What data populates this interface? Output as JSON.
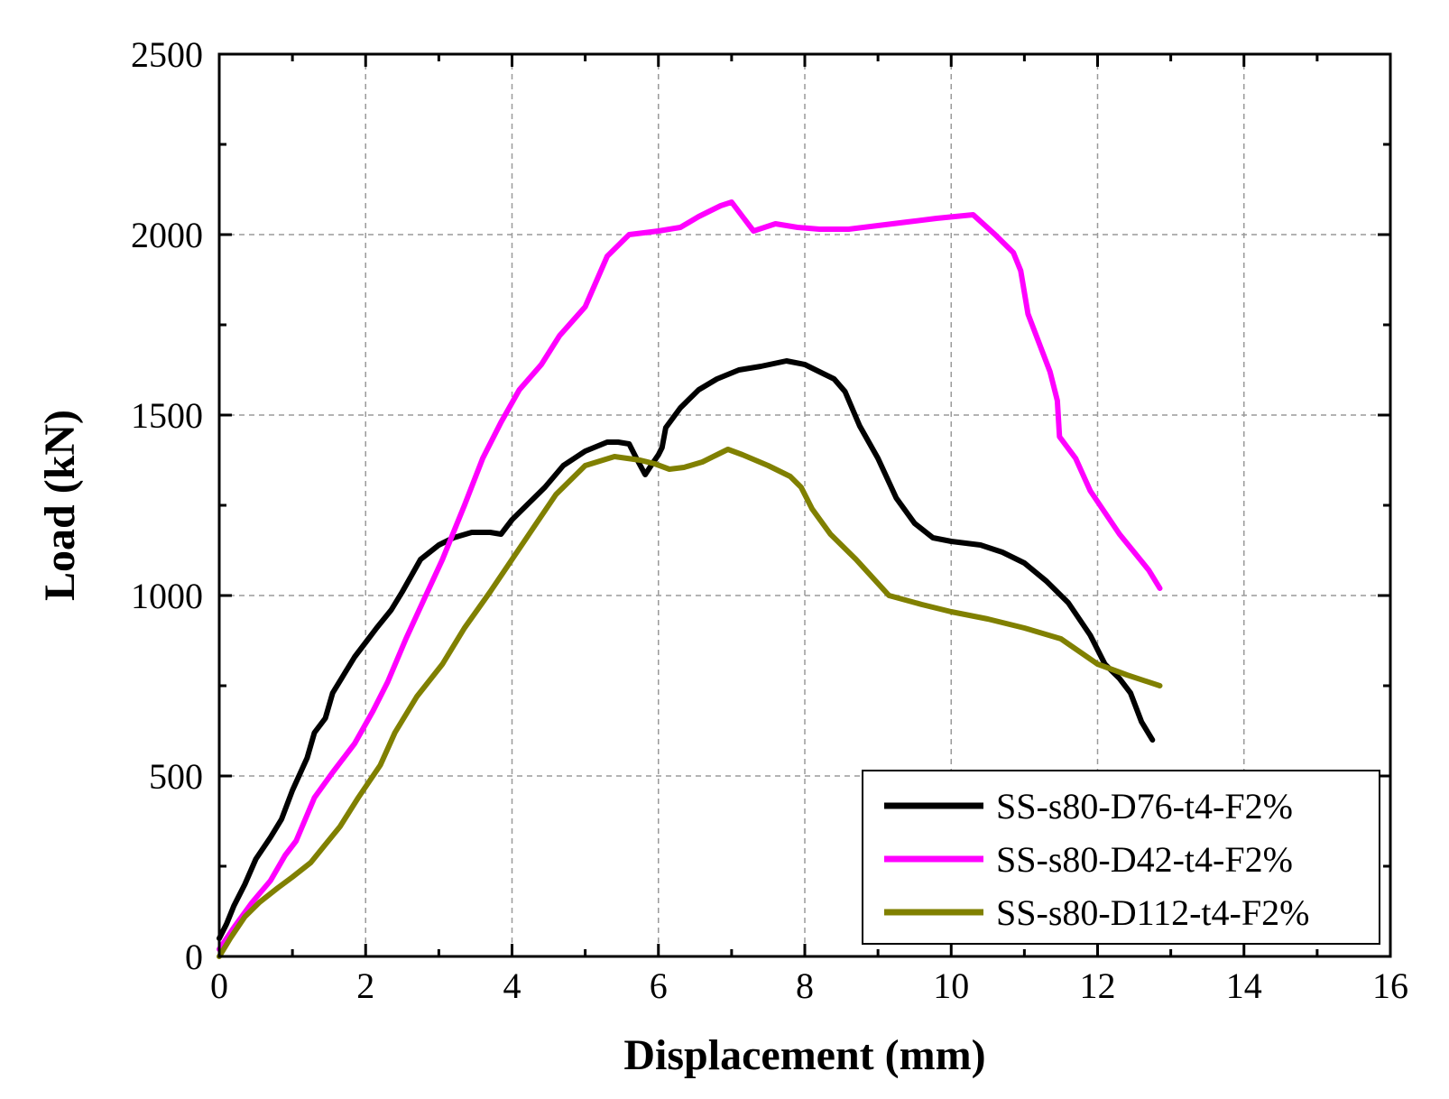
{
  "chart_data": {
    "type": "line",
    "title": "",
    "xlabel": "Displacement (mm)",
    "ylabel": "Load (kN)",
    "xlim": [
      0,
      16
    ],
    "ylim": [
      0,
      2500
    ],
    "xticks": [
      0,
      2,
      4,
      6,
      8,
      10,
      12,
      14,
      16
    ],
    "yticks": [
      0,
      500,
      1000,
      1500,
      2000,
      2500
    ],
    "grid": true,
    "legend_position": "bottom-right",
    "series": [
      {
        "name": "SS-s80-D76-t4-F2%",
        "color": "#000000",
        "x": [
          0,
          0.1,
          0.2,
          0.35,
          0.5,
          0.7,
          0.85,
          1.0,
          1.2,
          1.3,
          1.45,
          1.55,
          1.7,
          1.85,
          2.0,
          2.15,
          2.35,
          2.5,
          2.75,
          3.0,
          3.2,
          3.45,
          3.7,
          3.85,
          4.0,
          4.2,
          4.45,
          4.7,
          5.0,
          5.3,
          5.45,
          5.6,
          5.7,
          5.82,
          5.9,
          6.0,
          6.05,
          6.1,
          6.3,
          6.55,
          6.8,
          7.1,
          7.4,
          7.75,
          8.0,
          8.2,
          8.4,
          8.55,
          8.75,
          9.0,
          9.25,
          9.5,
          9.75,
          10.0,
          10.4,
          10.7,
          11.0,
          11.3,
          11.6,
          11.9,
          12.1,
          12.3,
          12.45,
          12.6,
          12.75
        ],
        "y": [
          50,
          90,
          140,
          200,
          270,
          330,
          380,
          460,
          550,
          620,
          660,
          730,
          780,
          830,
          870,
          910,
          960,
          1010,
          1100,
          1140,
          1160,
          1175,
          1175,
          1170,
          1210,
          1250,
          1300,
          1360,
          1400,
          1425,
          1425,
          1420,
          1380,
          1335,
          1360,
          1390,
          1410,
          1465,
          1520,
          1570,
          1600,
          1625,
          1635,
          1650,
          1640,
          1620,
          1600,
          1565,
          1470,
          1380,
          1270,
          1200,
          1160,
          1150,
          1140,
          1120,
          1090,
          1040,
          980,
          890,
          810,
          770,
          730,
          650,
          600
        ]
      },
      {
        "name": "SS-s80-D42-t4-F2%",
        "color": "#ff00ff",
        "x": [
          0,
          0.2,
          0.45,
          0.7,
          0.9,
          1.05,
          1.3,
          1.55,
          1.85,
          2.1,
          2.3,
          2.55,
          2.8,
          3.05,
          3.35,
          3.6,
          3.85,
          4.1,
          4.4,
          4.65,
          5.0,
          5.3,
          5.6,
          6.0,
          6.3,
          6.55,
          6.85,
          7.0,
          7.15,
          7.3,
          7.6,
          7.9,
          8.2,
          8.6,
          9.0,
          9.4,
          9.8,
          10.3,
          10.6,
          10.85,
          10.95,
          11.05,
          11.2,
          11.35,
          11.45,
          11.48,
          11.7,
          11.9,
          12.1,
          12.3,
          12.5,
          12.7,
          12.85
        ],
        "y": [
          20,
          80,
          150,
          210,
          280,
          320,
          440,
          510,
          590,
          680,
          760,
          880,
          990,
          1100,
          1250,
          1380,
          1480,
          1570,
          1640,
          1720,
          1800,
          1940,
          2000,
          2010,
          2020,
          2050,
          2080,
          2090,
          2050,
          2010,
          2030,
          2020,
          2015,
          2015,
          2025,
          2035,
          2045,
          2055,
          2000,
          1950,
          1900,
          1780,
          1700,
          1620,
          1540,
          1440,
          1380,
          1290,
          1230,
          1170,
          1120,
          1070,
          1020
        ]
      },
      {
        "name": "SS-s80-D112-t4-F2%",
        "color": "#808000",
        "x": [
          0,
          0.15,
          0.35,
          0.55,
          0.8,
          1.0,
          1.25,
          1.45,
          1.65,
          1.9,
          2.2,
          2.4,
          2.7,
          3.05,
          3.35,
          3.7,
          4.0,
          4.3,
          4.6,
          5.0,
          5.4,
          5.75,
          5.95,
          6.15,
          6.35,
          6.6,
          6.8,
          6.95,
          7.15,
          7.5,
          7.8,
          7.95,
          8.1,
          8.35,
          8.7,
          9.15,
          9.6,
          10.0,
          10.5,
          11.0,
          11.5,
          12.0,
          12.4,
          12.85
        ],
        "y": [
          0,
          50,
          110,
          150,
          190,
          220,
          260,
          310,
          360,
          440,
          530,
          620,
          720,
          810,
          910,
          1010,
          1100,
          1190,
          1280,
          1360,
          1385,
          1375,
          1365,
          1350,
          1355,
          1370,
          1390,
          1405,
          1390,
          1360,
          1330,
          1300,
          1240,
          1170,
          1100,
          1000,
          975,
          955,
          935,
          910,
          880,
          810,
          780,
          750
        ]
      }
    ]
  }
}
